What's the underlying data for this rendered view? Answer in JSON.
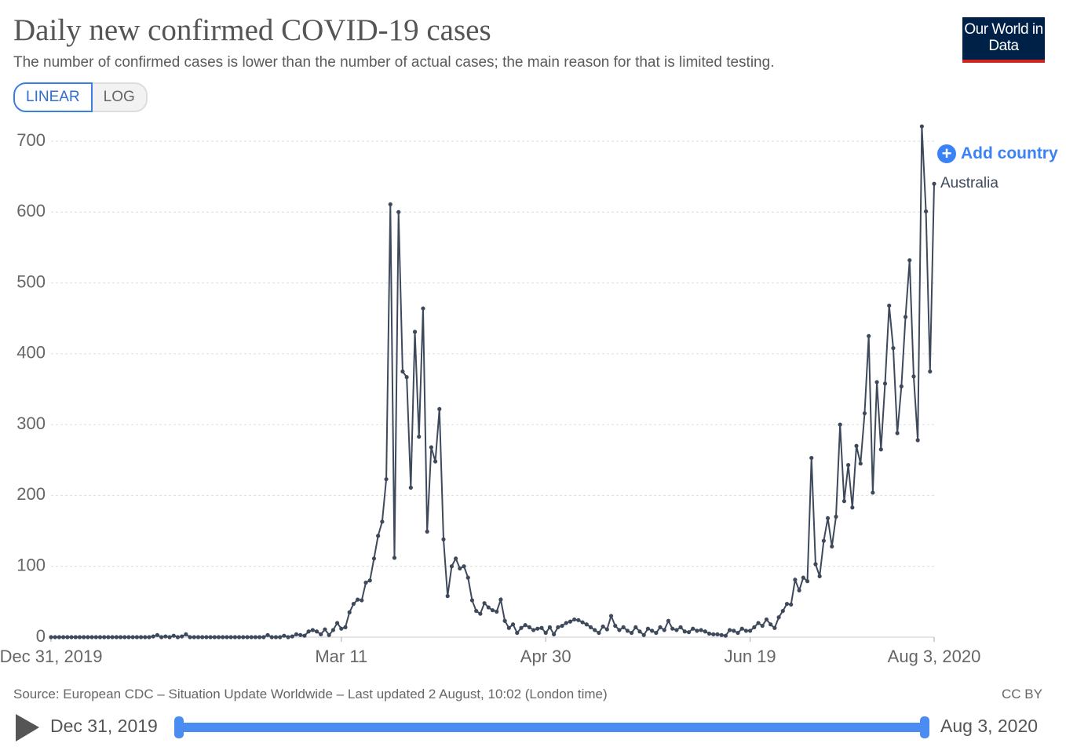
{
  "chart_data": {
    "type": "line",
    "title": "Daily new confirmed COVID-19 cases",
    "subtitle": "The number of confirmed cases is lower than the number of actual cases; the main reason for that is limited testing.",
    "scale_buttons": [
      "LINEAR",
      "LOG"
    ],
    "active_scale": "LINEAR",
    "logo": "Our World in Data",
    "add_button": "Add country",
    "source": "Source: European CDC – Situation Update Worldwide – Last updated 2 August, 10:02 (London time)",
    "license": "CC BY",
    "timeline": {
      "start": "Dec 31, 2019",
      "end": "Aug 3, 2020"
    },
    "grid": true,
    "ylim": [
      0,
      700
    ],
    "yticks": [
      0,
      100,
      200,
      300,
      400,
      500,
      600,
      700
    ],
    "xlim": [
      "2019-12-31",
      "2020-08-03"
    ],
    "xticks": [
      {
        "value": "2019-12-31",
        "label": "Dec 31, 2019"
      },
      {
        "value": "2020-03-11",
        "label": "Mar 11"
      },
      {
        "value": "2020-04-30",
        "label": "Apr 30"
      },
      {
        "value": "2020-06-19",
        "label": "Jun 19"
      },
      {
        "value": "2020-08-03",
        "label": "Aug 3, 2020"
      }
    ],
    "x": [
      "2019-12-31",
      "2020-01-01",
      "2020-01-02",
      "2020-01-03",
      "2020-01-04",
      "2020-01-05",
      "2020-01-06",
      "2020-01-07",
      "2020-01-08",
      "2020-01-09",
      "2020-01-10",
      "2020-01-11",
      "2020-01-12",
      "2020-01-13",
      "2020-01-14",
      "2020-01-15",
      "2020-01-16",
      "2020-01-17",
      "2020-01-18",
      "2020-01-19",
      "2020-01-20",
      "2020-01-21",
      "2020-01-22",
      "2020-01-23",
      "2020-01-24",
      "2020-01-25",
      "2020-01-26",
      "2020-01-27",
      "2020-01-28",
      "2020-01-29",
      "2020-01-30",
      "2020-01-31",
      "2020-02-01",
      "2020-02-02",
      "2020-02-03",
      "2020-02-04",
      "2020-02-05",
      "2020-02-06",
      "2020-02-07",
      "2020-02-08",
      "2020-02-09",
      "2020-02-10",
      "2020-02-11",
      "2020-02-12",
      "2020-02-13",
      "2020-02-14",
      "2020-02-15",
      "2020-02-16",
      "2020-02-17",
      "2020-02-18",
      "2020-02-19",
      "2020-02-20",
      "2020-02-21",
      "2020-02-22",
      "2020-02-23",
      "2020-02-24",
      "2020-02-25",
      "2020-02-26",
      "2020-02-27",
      "2020-02-28",
      "2020-02-29",
      "2020-03-01",
      "2020-03-02",
      "2020-03-03",
      "2020-03-04",
      "2020-03-05",
      "2020-03-06",
      "2020-03-07",
      "2020-03-08",
      "2020-03-09",
      "2020-03-10",
      "2020-03-11",
      "2020-03-12",
      "2020-03-13",
      "2020-03-14",
      "2020-03-15",
      "2020-03-16",
      "2020-03-17",
      "2020-03-18",
      "2020-03-19",
      "2020-03-20",
      "2020-03-21",
      "2020-03-22",
      "2020-03-23",
      "2020-03-24",
      "2020-03-25",
      "2020-03-26",
      "2020-03-27",
      "2020-03-28",
      "2020-03-29",
      "2020-03-30",
      "2020-03-31",
      "2020-04-01",
      "2020-04-02",
      "2020-04-03",
      "2020-04-04",
      "2020-04-05",
      "2020-04-06",
      "2020-04-07",
      "2020-04-08",
      "2020-04-09",
      "2020-04-10",
      "2020-04-11",
      "2020-04-12",
      "2020-04-13",
      "2020-04-14",
      "2020-04-15",
      "2020-04-16",
      "2020-04-17",
      "2020-04-18",
      "2020-04-19",
      "2020-04-20",
      "2020-04-21",
      "2020-04-22",
      "2020-04-23",
      "2020-04-24",
      "2020-04-25",
      "2020-04-26",
      "2020-04-27",
      "2020-04-28",
      "2020-04-29",
      "2020-04-30",
      "2020-05-01",
      "2020-05-02",
      "2020-05-03",
      "2020-05-04",
      "2020-05-05",
      "2020-05-06",
      "2020-05-07",
      "2020-05-08",
      "2020-05-09",
      "2020-05-10",
      "2020-05-11",
      "2020-05-12",
      "2020-05-13",
      "2020-05-14",
      "2020-05-15",
      "2020-05-16",
      "2020-05-17",
      "2020-05-18",
      "2020-05-19",
      "2020-05-20",
      "2020-05-21",
      "2020-05-22",
      "2020-05-23",
      "2020-05-24",
      "2020-05-25",
      "2020-05-26",
      "2020-05-27",
      "2020-05-28",
      "2020-05-29",
      "2020-05-30",
      "2020-05-31",
      "2020-06-01",
      "2020-06-02",
      "2020-06-03",
      "2020-06-04",
      "2020-06-05",
      "2020-06-06",
      "2020-06-07",
      "2020-06-08",
      "2020-06-09",
      "2020-06-10",
      "2020-06-11",
      "2020-06-12",
      "2020-06-13",
      "2020-06-14",
      "2020-06-15",
      "2020-06-16",
      "2020-06-17",
      "2020-06-18",
      "2020-06-19",
      "2020-06-20",
      "2020-06-21",
      "2020-06-22",
      "2020-06-23",
      "2020-06-24",
      "2020-06-25",
      "2020-06-26",
      "2020-06-27",
      "2020-06-28",
      "2020-06-29",
      "2020-06-30",
      "2020-07-01",
      "2020-07-02",
      "2020-07-03",
      "2020-07-04",
      "2020-07-05",
      "2020-07-06",
      "2020-07-07",
      "2020-07-08",
      "2020-07-09",
      "2020-07-10",
      "2020-07-11",
      "2020-07-12",
      "2020-07-13",
      "2020-07-14",
      "2020-07-15",
      "2020-07-16",
      "2020-07-17",
      "2020-07-18",
      "2020-07-19",
      "2020-07-20",
      "2020-07-21",
      "2020-07-22",
      "2020-07-23",
      "2020-07-24",
      "2020-07-25",
      "2020-07-26",
      "2020-07-27",
      "2020-07-28",
      "2020-07-29",
      "2020-07-30",
      "2020-07-31",
      "2020-08-01",
      "2020-08-02",
      "2020-08-03"
    ],
    "series": [
      {
        "name": "Australia",
        "color": "#3e4a5c",
        "values": [
          0,
          0,
          0,
          0,
          0,
          0,
          0,
          0,
          0,
          0,
          0,
          0,
          0,
          0,
          0,
          0,
          0,
          0,
          0,
          0,
          0,
          0,
          0,
          0,
          0,
          1,
          3,
          0,
          1,
          0,
          2,
          0,
          1,
          4,
          0,
          0,
          0,
          0,
          0,
          0,
          0,
          0,
          0,
          0,
          0,
          0,
          0,
          0,
          0,
          0,
          0,
          0,
          0,
          3,
          0,
          0,
          0,
          2,
          0,
          1,
          4,
          3,
          2,
          8,
          10,
          8,
          4,
          11,
          3,
          10,
          20,
          12,
          14,
          35,
          47,
          53,
          52,
          77,
          80,
          111,
          143,
          163,
          223,
          611,
          112,
          600,
          375,
          367,
          211,
          431,
          283,
          464,
          149,
          268,
          248,
          322,
          138,
          58,
          100,
          111,
          97,
          100,
          84,
          52,
          37,
          33,
          48,
          42,
          38,
          36,
          53,
          23,
          13,
          18,
          6,
          13,
          17,
          14,
          10,
          12,
          13,
          6,
          14,
          4,
          14,
          16,
          20,
          22,
          25,
          24,
          21,
          18,
          14,
          10,
          6,
          15,
          11,
          30,
          16,
          10,
          14,
          9,
          6,
          14,
          8,
          3,
          12,
          9,
          6,
          14,
          10,
          23,
          12,
          10,
          14,
          8,
          7,
          12,
          9,
          10,
          8,
          5,
          4,
          4,
          3,
          2,
          10,
          9,
          6,
          12,
          9,
          9,
          14,
          20,
          16,
          25,
          18,
          13,
          28,
          37,
          47,
          46,
          81,
          66,
          84,
          79,
          253,
          103,
          86,
          136,
          168,
          128,
          170,
          300,
          192,
          243,
          183,
          270,
          245,
          316,
          425,
          204,
          360,
          265,
          358,
          468,
          408,
          288,
          354,
          452,
          532,
          368,
          278,
          721,
          601,
          375,
          640
        ]
      }
    ]
  }
}
